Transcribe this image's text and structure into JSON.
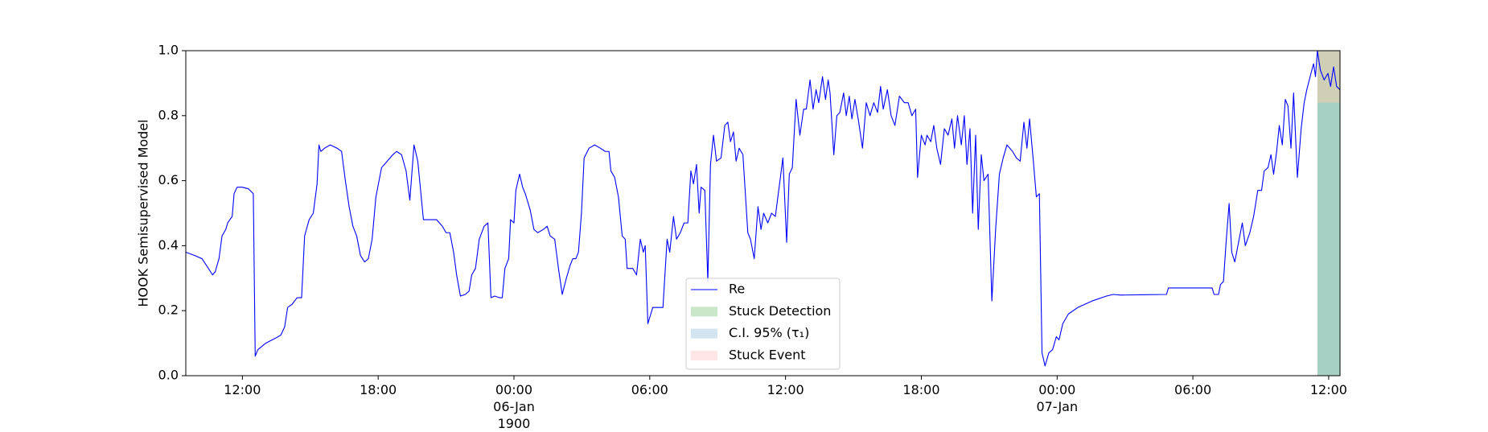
{
  "chart_data": {
    "type": "line",
    "ylabel": "HOOK Semisupervised Model",
    "xlim": [
      "1900-01-05 09:30",
      "1900-01-07 12:30"
    ],
    "xticks": [
      {
        "value": "1900-01-05 12:00",
        "label": "12:00"
      },
      {
        "value": "1900-01-05 18:00",
        "label": "18:00"
      },
      {
        "value": "1900-01-06 00:00",
        "label": "00:00\n06-Jan\n1900"
      },
      {
        "value": "1900-01-06 06:00",
        "label": "06:00"
      },
      {
        "value": "1900-01-06 12:00",
        "label": "12:00"
      },
      {
        "value": "1900-01-06 18:00",
        "label": "18:00"
      },
      {
        "value": "1900-01-07 00:00",
        "label": "00:00\n07-Jan"
      },
      {
        "value": "1900-01-07 06:00",
        "label": "06:00"
      },
      {
        "value": "1900-01-07 12:00",
        "label": "12:00"
      }
    ],
    "ylim": [
      0,
      1
    ],
    "yticks": [
      {
        "value": 0,
        "label": "0.0"
      },
      {
        "value": 0.2,
        "label": "0.2"
      },
      {
        "value": 0.4,
        "label": "0.4"
      },
      {
        "value": 0.6,
        "label": "0.6"
      },
      {
        "value": 0.8,
        "label": "0.8"
      },
      {
        "value": 1,
        "label": "1.0"
      }
    ],
    "legend": "lower center",
    "x": [
      "1900-01-05 09:30",
      "1900-01-05 09:53",
      "1900-01-05 10:13",
      "1900-01-05 10:30",
      "1900-01-05 10:41",
      "1900-01-05 10:48",
      "1900-01-05 10:58",
      "1900-01-05 11:06",
      "1900-01-05 11:16",
      "1900-01-05 11:21",
      "1900-01-05 11:33",
      "1900-01-05 11:38",
      "1900-01-05 11:46",
      "1900-01-05 12:00",
      "1900-01-05 12:16",
      "1900-01-05 12:29",
      "1900-01-05 12:34",
      "1900-01-05 12:41",
      "1900-01-05 13:02",
      "1900-01-05 13:27",
      "1900-01-05 13:42",
      "1900-01-05 13:52",
      "1900-01-05 14:00",
      "1900-01-05 14:12",
      "1900-01-05 14:25",
      "1900-01-05 14:37",
      "1900-01-05 14:45",
      "1900-01-05 14:57",
      "1900-01-05 15:08",
      "1900-01-05 15:18",
      "1900-01-05 15:23",
      "1900-01-05 15:28",
      "1900-01-05 15:38",
      "1900-01-05 15:53",
      "1900-01-05 16:11",
      "1900-01-05 16:23",
      "1900-01-05 16:33",
      "1900-01-05 16:43",
      "1900-01-05 16:53",
      "1900-01-05 17:03",
      "1900-01-05 17:13",
      "1900-01-05 17:24",
      "1900-01-05 17:34",
      "1900-01-05 17:44",
      "1900-01-05 17:54",
      "1900-01-05 18:09",
      "1900-01-05 18:24",
      "1900-01-05 18:39",
      "1900-01-05 18:49",
      "1900-01-05 19:02",
      "1900-01-05 19:14",
      "1900-01-05 19:24",
      "1900-01-05 19:35",
      "1900-01-05 19:45",
      "1900-01-05 20:00",
      "1900-01-05 20:15",
      "1900-01-05 20:35",
      "1900-01-05 20:50",
      "1900-01-05 21:00",
      "1900-01-05 21:10",
      "1900-01-05 21:20",
      "1900-01-05 21:28",
      "1900-01-05 21:38",
      "1900-01-05 21:51",
      "1900-01-05 22:01",
      "1900-01-05 22:08",
      "1900-01-05 22:18",
      "1900-01-05 22:28",
      "1900-01-05 22:41",
      "1900-01-05 22:51",
      "1900-01-05 22:59",
      "1900-01-05 23:09",
      "1900-01-05 23:21",
      "1900-01-05 23:29",
      "1900-01-05 23:36",
      "1900-01-05 23:46",
      "1900-01-05 23:51",
      "1900-01-06 00:00",
      "1900-01-06 00:05",
      "1900-01-06 00:15",
      "1900-01-06 00:23",
      "1900-01-06 00:30",
      "1900-01-06 00:43",
      "1900-01-06 00:53",
      "1900-01-06 01:03",
      "1900-01-06 01:18",
      "1900-01-06 01:28",
      "1900-01-06 01:36",
      "1900-01-06 01:48",
      "1900-01-06 01:58",
      "1900-01-06 02:08",
      "1900-01-06 02:19",
      "1900-01-06 02:29",
      "1900-01-06 02:36",
      "1900-01-06 02:44",
      "1900-01-06 02:51",
      "1900-01-06 02:59",
      "1900-01-06 03:06",
      "1900-01-06 03:19",
      "1900-01-06 03:34",
      "1900-01-06 03:49",
      "1900-01-06 04:02",
      "1900-01-06 04:12",
      "1900-01-06 04:17",
      "1900-01-06 04:27",
      "1900-01-06 04:37",
      "1900-01-06 04:47",
      "1900-01-06 04:55",
      "1900-01-06 05:00",
      "1900-01-06 05:15",
      "1900-01-06 05:25",
      "1900-01-06 05:35",
      "1900-01-06 05:43",
      "1900-01-06 05:48",
      "1900-01-06 05:55",
      "1900-01-06 06:08",
      "1900-01-06 06:20",
      "1900-01-06 06:35",
      "1900-01-06 06:46",
      "1900-01-06 06:53",
      "1900-01-06 07:03",
      "1900-01-06 07:11",
      "1900-01-06 07:21",
      "1900-01-06 07:31",
      "1900-01-06 07:41",
      "1900-01-06 07:49",
      "1900-01-06 07:56",
      "1900-01-06 08:04",
      "1900-01-06 08:11",
      "1900-01-06 08:16",
      "1900-01-06 08:26",
      "1900-01-06 08:34",
      "1900-01-06 08:41",
      "1900-01-06 08:49",
      "1900-01-06 08:57",
      "1900-01-06 09:09",
      "1900-01-06 09:19",
      "1900-01-06 09:27",
      "1900-01-06 09:34",
      "1900-01-06 09:42",
      "1900-01-06 09:49",
      "1900-01-06 09:57",
      "1900-01-06 10:07",
      "1900-01-06 10:20",
      "1900-01-06 10:27",
      "1900-01-06 10:37",
      "1900-01-06 10:47",
      "1900-01-06 10:55",
      "1900-01-06 11:02",
      "1900-01-06 11:13",
      "1900-01-06 11:23",
      "1900-01-06 11:33",
      "1900-01-06 11:43",
      "1900-01-06 11:53",
      "1900-01-06 12:03",
      "1900-01-06 12:10",
      "1900-01-06 12:18",
      "1900-01-06 12:28",
      "1900-01-06 12:38",
      "1900-01-06 12:48",
      "1900-01-06 12:55",
      "1900-01-06 13:05",
      "1900-01-06 13:13",
      "1900-01-06 13:21",
      "1900-01-06 13:28",
      "1900-01-06 13:38",
      "1900-01-06 13:46",
      "1900-01-06 13:53",
      "1900-01-06 13:58",
      "1900-01-06 14:08",
      "1900-01-06 14:16",
      "1900-01-06 14:24",
      "1900-01-06 14:34",
      "1900-01-06 14:41",
      "1900-01-06 14:49",
      "1900-01-06 14:56",
      "1900-01-06 15:04",
      "1900-01-06 15:14",
      "1900-01-06 15:24",
      "1900-01-06 15:34",
      "1900-01-06 15:44",
      "1900-01-06 15:54",
      "1900-01-06 16:04",
      "1900-01-06 16:12",
      "1900-01-06 16:19",
      "1900-01-06 16:30",
      "1900-01-06 16:40",
      "1900-01-06 16:50",
      "1900-01-06 17:02",
      "1900-01-06 17:15",
      "1900-01-06 17:25",
      "1900-01-06 17:35",
      "1900-01-06 17:45",
      "1900-01-06 17:50",
      "1900-01-06 18:00",
      "1900-01-06 18:10",
      "1900-01-06 18:15",
      "1900-01-06 18:25",
      "1900-01-06 18:33",
      "1900-01-06 18:41",
      "1900-01-06 18:51",
      "1900-01-06 19:01",
      "1900-01-06 19:11",
      "1900-01-06 19:21",
      "1900-01-06 19:28",
      "1900-01-06 19:36",
      "1900-01-06 19:46",
      "1900-01-06 19:54",
      "1900-01-06 20:01",
      "1900-01-06 20:09",
      "1900-01-06 20:16",
      "1900-01-06 20:24",
      "1900-01-06 20:31",
      "1900-01-06 20:39",
      "1900-01-06 20:46",
      "1900-01-06 20:57",
      "1900-01-06 21:07",
      "1900-01-06 21:17",
      "1900-01-06 21:27",
      "1900-01-06 21:37",
      "1900-01-06 21:47",
      "1900-01-06 22:02",
      "1900-01-06 22:12",
      "1900-01-06 22:22",
      "1900-01-06 22:32",
      "1900-01-06 22:40",
      "1900-01-06 22:47",
      "1900-01-06 22:57",
      "1900-01-06 23:05",
      "1900-01-06 23:13",
      "1900-01-06 23:20",
      "1900-01-06 23:28",
      "1900-01-06 23:38",
      "1900-01-06 23:48",
      "1900-01-06 23:58",
      "1900-01-07 00:05",
      "1900-01-07 00:15",
      "1900-01-07 00:30",
      "1900-01-07 00:55",
      "1900-01-07 01:33",
      "1900-01-07 02:11",
      "1900-01-07 02:29",
      "1900-01-07 02:49",
      "1900-01-07 03:39",
      "1900-01-07 04:50",
      "1900-01-07 04:55",
      "1900-01-07 06:10",
      "1900-01-07 06:51",
      "1900-01-07 06:56",
      "1900-01-07 07:08",
      "1900-01-07 07:13",
      "1900-01-07 07:21",
      "1900-01-07 07:28",
      "1900-01-07 07:36",
      "1900-01-07 07:43",
      "1900-01-07 07:51",
      "1900-01-07 08:01",
      "1900-01-07 08:11",
      "1900-01-07 08:19",
      "1900-01-07 08:31",
      "1900-01-07 08:41",
      "1900-01-07 08:52",
      "1900-01-07 09:02",
      "1900-01-07 09:09",
      "1900-01-07 09:19",
      "1900-01-07 09:27",
      "1900-01-07 09:34",
      "1900-01-07 09:42",
      "1900-01-07 09:49",
      "1900-01-07 09:57",
      "1900-01-07 10:05",
      "1900-01-07 10:12",
      "1900-01-07 10:20",
      "1900-01-07 10:27",
      "1900-01-07 10:37",
      "1900-01-07 10:47",
      "1900-01-07 10:55",
      "1900-01-07 11:02",
      "1900-01-07 11:13",
      "1900-01-07 11:20",
      "1900-01-07 11:25",
      "1900-01-07 11:30",
      "1900-01-07 11:38",
      "1900-01-07 11:48",
      "1900-01-07 11:58",
      "1900-01-07 12:05",
      "1900-01-07 12:13",
      "1900-01-07 12:21",
      "1900-01-07 12:30"
    ],
    "series": [
      {
        "name": "Re",
        "color": "#0000ff",
        "values": [
          0.38,
          0.37,
          0.36,
          0.33,
          0.31,
          0.32,
          0.36,
          0.43,
          0.45,
          0.47,
          0.49,
          0.56,
          0.58,
          0.58,
          0.575,
          0.56,
          0.06,
          0.08,
          0.1,
          0.115,
          0.125,
          0.15,
          0.21,
          0.22,
          0.24,
          0.24,
          0.43,
          0.48,
          0.5,
          0.59,
          0.71,
          0.69,
          0.7,
          0.71,
          0.7,
          0.69,
          0.6,
          0.52,
          0.46,
          0.43,
          0.37,
          0.35,
          0.36,
          0.42,
          0.55,
          0.64,
          0.66,
          0.68,
          0.69,
          0.68,
          0.63,
          0.54,
          0.71,
          0.66,
          0.48,
          0.48,
          0.48,
          0.46,
          0.44,
          0.44,
          0.38,
          0.31,
          0.245,
          0.25,
          0.26,
          0.31,
          0.33,
          0.42,
          0.46,
          0.47,
          0.24,
          0.245,
          0.24,
          0.24,
          0.33,
          0.36,
          0.48,
          0.47,
          0.57,
          0.62,
          0.58,
          0.56,
          0.51,
          0.45,
          0.44,
          0.45,
          0.46,
          0.43,
          0.42,
          0.33,
          0.25,
          0.3,
          0.34,
          0.36,
          0.36,
          0.38,
          0.5,
          0.67,
          0.7,
          0.71,
          0.7,
          0.69,
          0.69,
          0.63,
          0.61,
          0.55,
          0.43,
          0.42,
          0.33,
          0.33,
          0.31,
          0.42,
          0.38,
          0.4,
          0.16,
          0.21,
          0.21,
          0.21,
          0.42,
          0.38,
          0.49,
          0.42,
          0.44,
          0.47,
          0.47,
          0.63,
          0.59,
          0.65,
          0.5,
          0.58,
          0.57,
          0.29,
          0.65,
          0.74,
          0.66,
          0.67,
          0.77,
          0.78,
          0.72,
          0.75,
          0.66,
          0.7,
          0.68,
          0.44,
          0.42,
          0.36,
          0.52,
          0.45,
          0.5,
          0.47,
          0.5,
          0.49,
          0.58,
          0.67,
          0.41,
          0.62,
          0.64,
          0.85,
          0.74,
          0.82,
          0.82,
          0.91,
          0.82,
          0.88,
          0.84,
          0.92,
          0.85,
          0.91,
          0.87,
          0.68,
          0.8,
          0.81,
          0.87,
          0.8,
          0.86,
          0.79,
          0.85,
          0.78,
          0.7,
          0.84,
          0.8,
          0.84,
          0.81,
          0.89,
          0.82,
          0.88,
          0.8,
          0.77,
          0.86,
          0.84,
          0.84,
          0.8,
          0.82,
          0.61,
          0.74,
          0.71,
          0.74,
          0.72,
          0.77,
          0.7,
          0.65,
          0.76,
          0.74,
          0.79,
          0.7,
          0.8,
          0.71,
          0.8,
          0.65,
          0.76,
          0.5,
          0.74,
          0.45,
          0.68,
          0.6,
          0.62,
          0.23,
          0.45,
          0.62,
          0.67,
          0.71,
          0.69,
          0.67,
          0.66,
          0.78,
          0.7,
          0.79,
          0.66,
          0.55,
          0.56,
          0.07,
          0.03,
          0.07,
          0.08,
          0.12,
          0.11,
          0.16,
          0.19,
          0.21,
          0.23,
          0.245,
          0.25,
          0.248,
          0.249,
          0.25,
          0.27,
          0.27,
          0.27,
          0.25,
          0.25,
          0.28,
          0.29,
          0.41,
          0.53,
          0.38,
          0.35,
          0.41,
          0.47,
          0.4,
          0.44,
          0.49,
          0.57,
          0.57,
          0.63,
          0.64,
          0.68,
          0.62,
          0.69,
          0.77,
          0.71,
          0.85,
          0.83,
          0.7,
          0.87,
          0.61,
          0.76,
          0.84,
          0.88,
          0.93,
          0.96,
          0.92,
          1.0,
          0.94,
          0.91,
          0.93,
          0.89,
          0.95,
          0.89,
          0.88
        ]
      }
    ],
    "spans": [
      {
        "name": "Stuck Detection",
        "color": "rgba(44,160,44,0.25)",
        "x": [
          "1900-01-07 11:30",
          "1900-01-07 12:30"
        ],
        "y": [
          0,
          1
        ]
      },
      {
        "name": "C.I. 95% (τ₁)",
        "color": "rgba(31,119,180,0.2)",
        "x": [
          "1900-01-07 11:30",
          "1900-01-07 12:30"
        ],
        "y": [
          0,
          0.84
        ]
      },
      {
        "name": "Stuck Event",
        "color": "rgba(255,0,0,0.1)",
        "x": [
          "1900-01-07 11:30",
          "1900-01-07 12:30"
        ],
        "y": [
          0.84,
          1
        ]
      }
    ]
  }
}
